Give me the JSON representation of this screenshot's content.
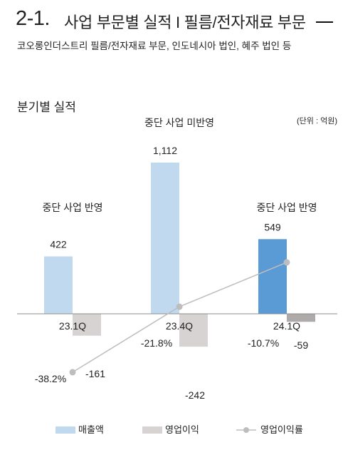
{
  "header": {
    "number": "2-1.",
    "title": "사업 부문별 실적 I 필름/전자재료 부문"
  },
  "subtitle": "코오롱인더스트리 필름/전자재료 부문, 인도네시아 법인, 혜주 법인 등",
  "section_title": "분기별 실적",
  "chart_data": {
    "type": "bar",
    "title": "",
    "unit_note": "(단위 : 억원)",
    "categories": [
      "23.1Q",
      "23.4Q",
      "24.1Q"
    ],
    "series": [
      {
        "name": "매출액",
        "kind": "bar",
        "values": [
          422,
          1112,
          549
        ],
        "colors": [
          "#c0d9ee",
          "#c0d9ee",
          "#5b9bd5"
        ]
      },
      {
        "name": "영업이익",
        "kind": "bar",
        "values": [
          -161,
          -242,
          -59
        ],
        "colors": [
          "#d6d3d2",
          "#d6d3d2",
          "#aeaaa9"
        ]
      },
      {
        "name": "영업이익률",
        "kind": "line",
        "values": [
          -38.2,
          -21.8,
          -10.7
        ],
        "labels": [
          "-38.2%",
          "-21.8%",
          "-10.7%"
        ],
        "color": "#bdbdbd"
      }
    ],
    "revenue_labels": [
      "422",
      "1,112",
      "549"
    ],
    "profit_labels": [
      "-161",
      "-242",
      "-59"
    ],
    "annotations": [
      "중단 사업 반영",
      "중단 사업 미반영",
      "중단 사업 반영"
    ]
  }
}
